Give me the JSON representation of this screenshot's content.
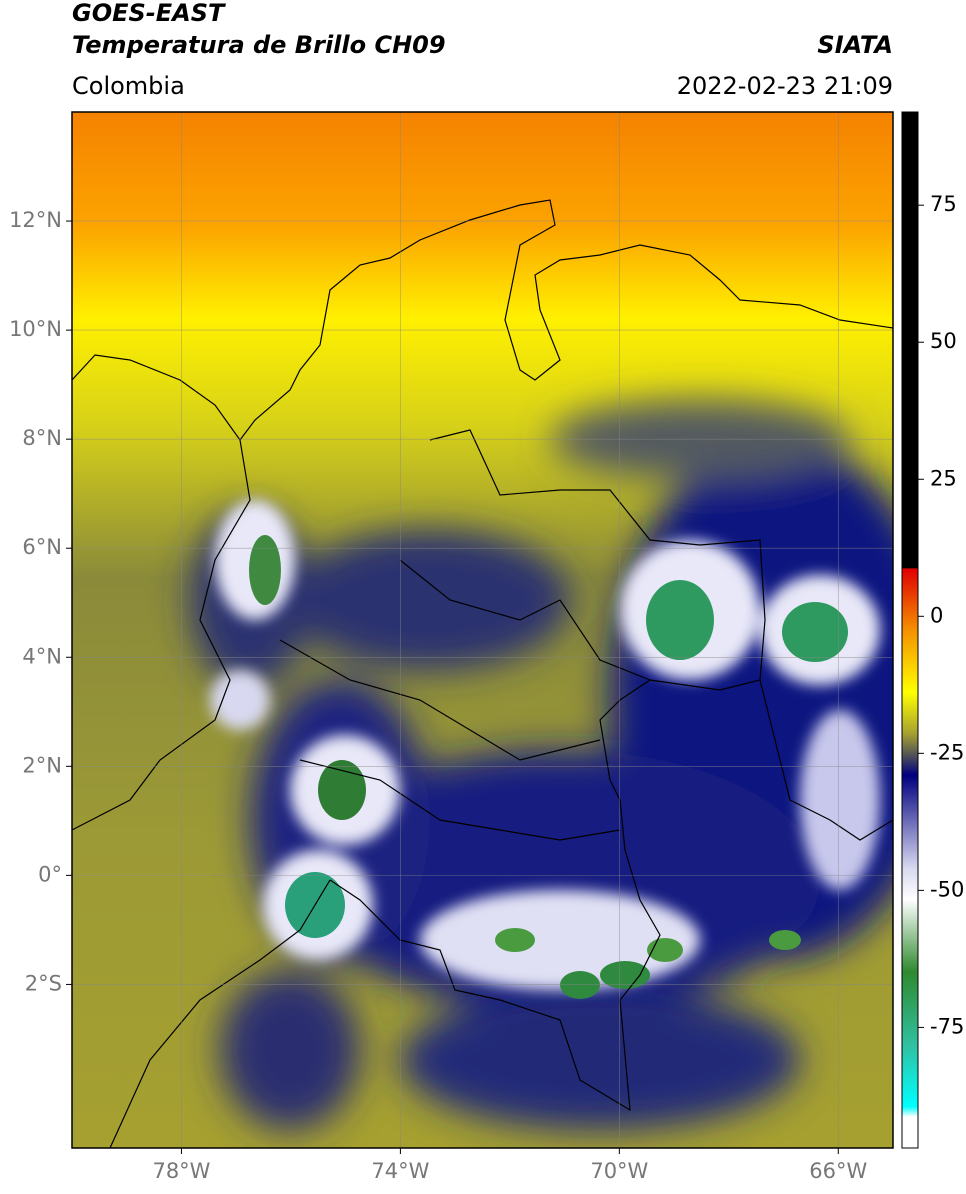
{
  "title": {
    "line1": "GOES-EAST",
    "line2": "Temperatura de Brillo CH09",
    "source": "SIATA",
    "region": "Colombia",
    "datetime": "2022-02-23 21:09"
  },
  "map": {
    "xlim": [
      -80,
      -65
    ],
    "ylim": [
      -5,
      14
    ],
    "grid": true,
    "xticks": [
      {
        "value": -78,
        "label": "78°W"
      },
      {
        "value": -74,
        "label": "74°W"
      },
      {
        "value": -70,
        "label": "70°W"
      },
      {
        "value": -66,
        "label": "66°W"
      }
    ],
    "yticks": [
      {
        "value": 12,
        "label": "12°N"
      },
      {
        "value": 10,
        "label": "10°N"
      },
      {
        "value": 8,
        "label": "8°N"
      },
      {
        "value": 6,
        "label": "6°N"
      },
      {
        "value": 4,
        "label": "4°N"
      },
      {
        "value": 2,
        "label": "2°N"
      },
      {
        "value": 0,
        "label": "0°"
      },
      {
        "value": -2,
        "label": "2°S"
      }
    ]
  },
  "colorbar": {
    "lim": [
      -97,
      92
    ],
    "ticks": [
      75,
      50,
      25,
      0,
      -25,
      -50,
      -75
    ]
  }
}
